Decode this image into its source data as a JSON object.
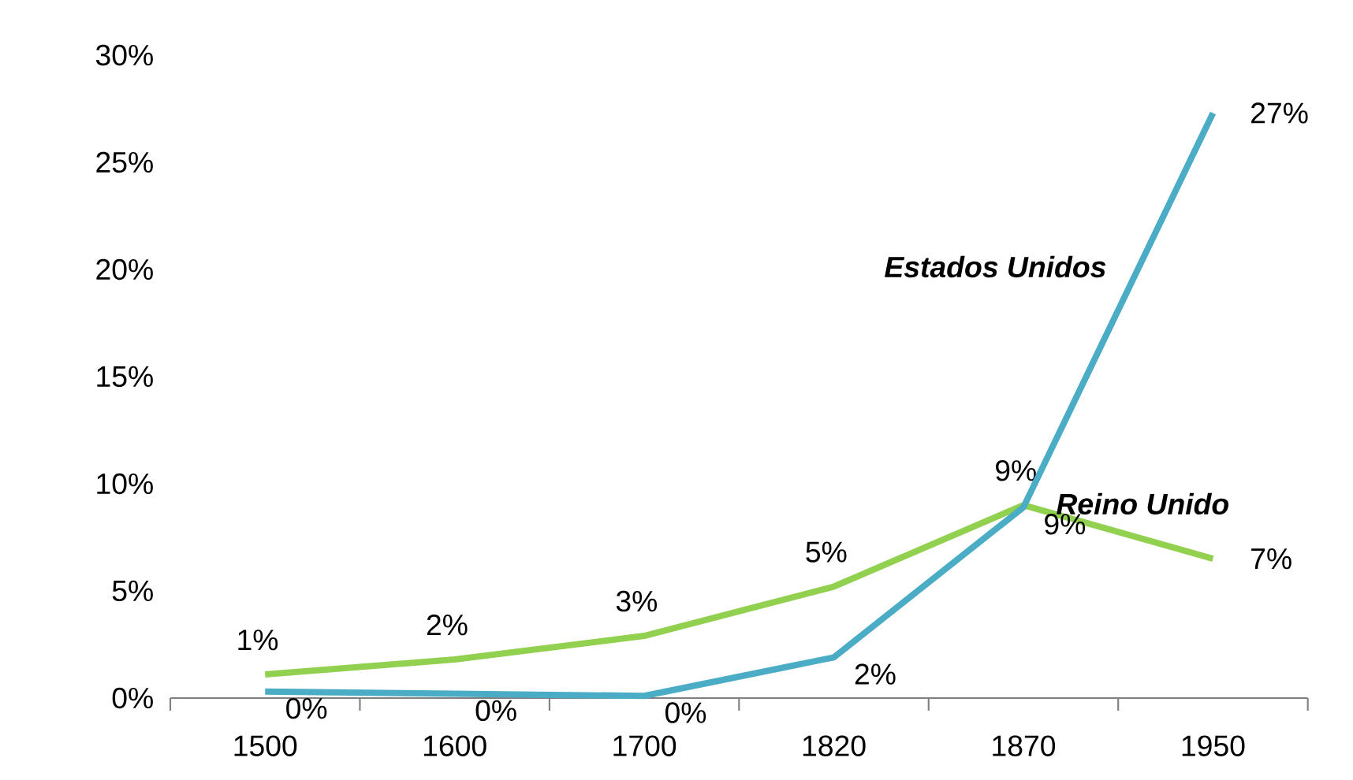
{
  "chart_data": {
    "type": "line",
    "categories": [
      "1500",
      "1600",
      "1700",
      "1820",
      "1870",
      "1950"
    ],
    "ylim": [
      0,
      30
    ],
    "yticks": [
      {
        "value": 0,
        "label": "0%"
      },
      {
        "value": 5,
        "label": "5%"
      },
      {
        "value": 10,
        "label": "10%"
      },
      {
        "value": 15,
        "label": "15%"
      },
      {
        "value": 20,
        "label": "20%"
      },
      {
        "value": 25,
        "label": "25%"
      },
      {
        "value": 30,
        "label": "30%"
      }
    ],
    "marker": "none",
    "line_style": "solid",
    "legend": false,
    "series": [
      {
        "name": "Reino Unido",
        "color": "#92d050",
        "values": [
          1.1,
          1.8,
          2.9,
          5.2,
          9.0,
          6.5
        ],
        "value_labels": [
          "1%",
          "2%",
          "3%",
          "5%",
          "9%",
          "7%"
        ]
      },
      {
        "name": "Estados Unidos",
        "color": "#4bacc6",
        "values": [
          0.3,
          0.2,
          0.1,
          1.9,
          8.9,
          27.3
        ],
        "value_labels": [
          "0%",
          "0%",
          "0%",
          "2%",
          "9%",
          "27%"
        ]
      }
    ]
  }
}
